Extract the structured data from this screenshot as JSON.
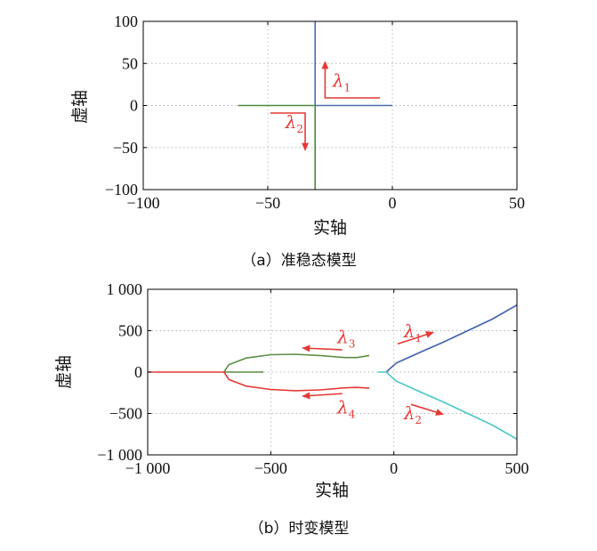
{
  "chart_data": [
    {
      "type": "line",
      "caption": "（a）准稳态模型",
      "xlabel": "实轴",
      "ylabel": "虚轴",
      "xlim": [
        -100,
        50
      ],
      "ylim": [
        -100,
        100
      ],
      "xticks": [
        -100,
        -50,
        0,
        50
      ],
      "yticks": [
        -100,
        -50,
        0,
        50,
        100
      ],
      "xtick_labels": [
        "−100",
        "−50",
        "0",
        "50"
      ],
      "ytick_labels": [
        "−100",
        "−50",
        "0",
        "50",
        "100"
      ],
      "grid": true,
      "series": [
        {
          "name": "λ1",
          "color": "#4a6fb5",
          "segments": [
            [
              [
                -31,
                0
              ],
              [
                -31,
                100
              ]
            ],
            [
              [
                -31,
                0
              ],
              [
                0,
                0
              ]
            ]
          ]
        },
        {
          "name": "λ2",
          "color": "#4f8a3c",
          "segments": [
            [
              [
                -31,
                0
              ],
              [
                -31,
                -100
              ]
            ],
            [
              [
                -31,
                0
              ],
              [
                -62,
                0
              ]
            ]
          ]
        }
      ],
      "annotations": [
        {
          "label": "λ",
          "sub": "1",
          "at": [
            -24,
            22
          ],
          "arrow": [
            [
              -5,
              9
            ],
            [
              -27,
              9
            ],
            [
              -27,
              52
            ]
          ]
        },
        {
          "label": "λ",
          "sub": "2",
          "at": [
            -43,
            -27
          ],
          "arrow": [
            [
              -49,
              -9
            ],
            [
              -35,
              -9
            ],
            [
              -35,
              -53
            ]
          ]
        }
      ]
    },
    {
      "type": "line",
      "caption": "（b）时变模型",
      "xlabel": "实轴",
      "ylabel": "虚轴",
      "xlim": [
        -1000,
        500
      ],
      "ylim": [
        -1000,
        1000
      ],
      "xticks": [
        -1000,
        -500,
        0,
        500
      ],
      "yticks": [
        -1000,
        -500,
        0,
        500,
        1000
      ],
      "xtick_labels": [
        "−1 000",
        "−500",
        "0",
        "500"
      ],
      "ytick_labels": [
        "−1 000",
        "−500",
        "0",
        "500",
        "1 000"
      ],
      "grid": true,
      "series": [
        {
          "name": "λ1",
          "color": "#3f5fb0",
          "points": [
            [
              -30,
              0
            ],
            [
              -20,
              30
            ],
            [
              -5,
              70
            ],
            [
              10,
              110
            ],
            [
              40,
              150
            ],
            [
              100,
              230
            ],
            [
              200,
              360
            ],
            [
              300,
              500
            ],
            [
              400,
              640
            ],
            [
              500,
              810
            ]
          ]
        },
        {
          "name": "λ2",
          "color": "#4cc6c6",
          "points": [
            [
              -65,
              0
            ],
            [
              -30,
              0
            ],
            [
              -20,
              -30
            ],
            [
              -5,
              -70
            ],
            [
              10,
              -110
            ],
            [
              40,
              -150
            ],
            [
              100,
              -230
            ],
            [
              200,
              -360
            ],
            [
              300,
              -500
            ],
            [
              400,
              -640
            ],
            [
              500,
              -810
            ]
          ]
        },
        {
          "name": "λ3",
          "color": "#5a8f45",
          "points": [
            [
              -530,
              0
            ],
            [
              -690,
              0
            ],
            [
              -670,
              90
            ],
            [
              -600,
              170
            ],
            [
              -500,
              210
            ],
            [
              -400,
              215
            ],
            [
              -300,
              200
            ],
            [
              -200,
              175
            ],
            [
              -150,
              175
            ],
            [
              -100,
              200
            ]
          ]
        },
        {
          "name": "λ4",
          "color": "#e53935",
          "points": [
            [
              -1000,
              0
            ],
            [
              -690,
              0
            ],
            [
              -670,
              -90
            ],
            [
              -600,
              -170
            ],
            [
              -500,
              -210
            ],
            [
              -400,
              -225
            ],
            [
              -300,
              -215
            ],
            [
              -200,
              -190
            ],
            [
              -150,
              -185
            ],
            [
              -100,
              -195
            ]
          ]
        }
      ],
      "annotations": [
        {
          "label": "λ",
          "sub": "1",
          "at": [
            40,
            420
          ],
          "arrow": [
            [
              15,
              340
            ],
            [
              160,
              480
            ]
          ]
        },
        {
          "label": "λ",
          "sub": "2",
          "at": [
            40,
            -570
          ],
          "arrow": [
            [
              70,
              -390
            ],
            [
              200,
              -510
            ]
          ]
        },
        {
          "label": "λ",
          "sub": "3",
          "at": [
            -230,
            350
          ],
          "arrow": [
            [
              -210,
              270
            ],
            [
              -370,
              290
            ]
          ]
        },
        {
          "label": "λ",
          "sub": "4",
          "at": [
            -230,
            -500
          ],
          "arrow": [
            [
              -210,
              -260
            ],
            [
              -370,
              -290
            ]
          ]
        }
      ]
    }
  ]
}
